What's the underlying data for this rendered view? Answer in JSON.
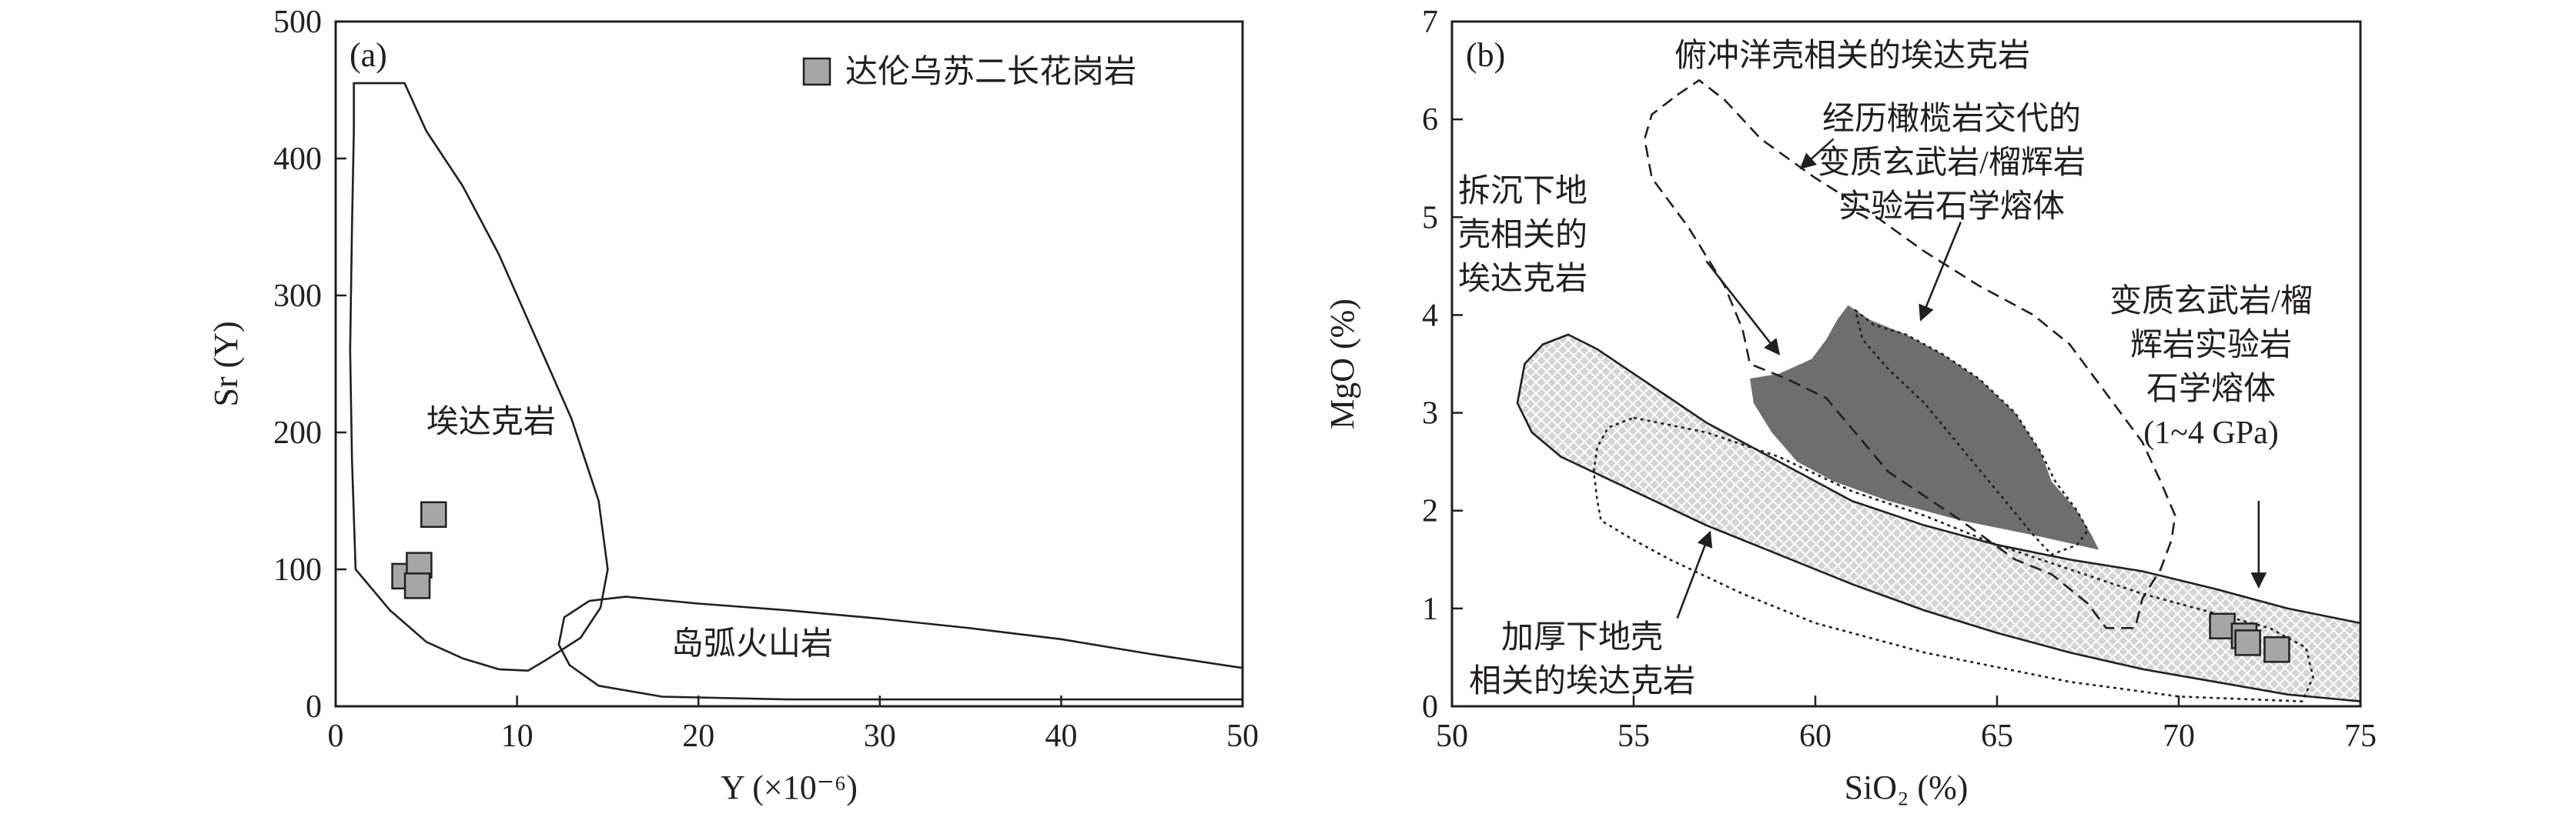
{
  "chart_data": [
    {
      "panel_label": "(a)",
      "type": "scatter",
      "xlabel": "Y (×10⁻⁶)",
      "ylabel": "Sr (Y)",
      "xlim": [
        0,
        50
      ],
      "ylim": [
        0,
        500
      ],
      "xticks": [
        0,
        10,
        20,
        30,
        40,
        50
      ],
      "yticks": [
        0,
        100,
        200,
        300,
        400,
        500
      ],
      "grid": false,
      "legend_position": "top-right",
      "series": [
        {
          "name": "达伦乌苏二长花岗岩",
          "marker": "square",
          "color": "#a6a6a6",
          "x": [
            5.4,
            3.8,
            4.6,
            4.5
          ],
          "y": [
            140,
            95,
            103,
            88
          ]
        }
      ],
      "regions": [
        {
          "label": "埃达克岩",
          "label_at": [
            5.0,
            200
          ],
          "style": "solid",
          "points": [
            [
              1.0,
              455
            ],
            [
              1.0,
              420
            ],
            [
              0.9,
              350
            ],
            [
              0.8,
              260
            ],
            [
              0.9,
              180
            ],
            [
              1.1,
              100
            ],
            [
              3,
              70
            ],
            [
              5,
              47
            ],
            [
              7,
              35
            ],
            [
              9,
              27
            ],
            [
              10.6,
              26
            ],
            [
              11.5,
              33
            ],
            [
              13.5,
              50
            ],
            [
              14.6,
              72
            ],
            [
              15,
              100
            ],
            [
              14.5,
              150
            ],
            [
              13,
              210
            ],
            [
              11,
              270
            ],
            [
              9,
              330
            ],
            [
              7,
              380
            ],
            [
              5,
              420
            ],
            [
              3.8,
              455
            ]
          ]
        },
        {
          "label": "岛弧火山岩",
          "label_at": [
            18.5,
            38
          ],
          "style": "solid",
          "points": [
            [
              50,
              28
            ],
            [
              45,
              38
            ],
            [
              40,
              49
            ],
            [
              35,
              57
            ],
            [
              30,
              64
            ],
            [
              25,
              70
            ],
            [
              20,
              75
            ],
            [
              16,
              80
            ],
            [
              14,
              77
            ],
            [
              12.6,
              65
            ],
            [
              12.3,
              45
            ],
            [
              12.9,
              30
            ],
            [
              14.5,
              15
            ],
            [
              18,
              7
            ],
            [
              25,
              5
            ],
            [
              35,
              5
            ],
            [
              42,
              5
            ],
            [
              50,
              5
            ]
          ]
        }
      ]
    },
    {
      "panel_label": "(b)",
      "type": "scatter",
      "xlabel": "SiO₂ (%)",
      "ylabel": "MgO (%)",
      "xlim": [
        50,
        75
      ],
      "ylim": [
        0,
        7
      ],
      "xticks": [
        50,
        55,
        60,
        65,
        70,
        75
      ],
      "yticks": [
        0,
        1,
        2,
        3,
        4,
        5,
        6,
        7
      ],
      "grid": false,
      "series": [
        {
          "name": "",
          "marker": "square",
          "color": "#a6a6a6",
          "x": [
            71.2,
            71.8,
            71.9,
            72.7
          ],
          "y": [
            0.82,
            0.72,
            0.65,
            0.58
          ]
        }
      ],
      "regions": [
        {
          "label": "变质玄武岩/榴辉岩实验岩石学熔体 (1~4 GPa)",
          "style": "crosshatch",
          "points": [
            [
              75,
              0.85
            ],
            [
              73,
              1.0
            ],
            [
              71,
              1.2
            ],
            [
              69,
              1.38
            ],
            [
              67,
              1.5
            ],
            [
              65,
              1.65
            ],
            [
              63,
              1.85
            ],
            [
              61,
              2.1
            ],
            [
              59,
              2.5
            ],
            [
              57,
              2.9
            ],
            [
              55,
              3.4
            ],
            [
              54,
              3.65
            ],
            [
              53.2,
              3.8
            ],
            [
              52.5,
              3.7
            ],
            [
              52,
              3.5
            ],
            [
              51.8,
              3.1
            ],
            [
              52.2,
              2.8
            ],
            [
              53,
              2.55
            ],
            [
              55,
              2.2
            ],
            [
              57,
              1.85
            ],
            [
              59,
              1.55
            ],
            [
              61,
              1.25
            ],
            [
              63,
              0.98
            ],
            [
              65,
              0.75
            ],
            [
              67,
              0.55
            ],
            [
              69,
              0.38
            ],
            [
              71,
              0.25
            ],
            [
              73,
              0.12
            ],
            [
              75,
              0.05
            ]
          ]
        },
        {
          "label": "拆沉下地壳相关的埃达克岩",
          "style": "filled-dark",
          "points": [
            [
              58.2,
              3.35
            ],
            [
              59,
              3.4
            ],
            [
              59.9,
              3.55
            ],
            [
              60.3,
              3.75
            ],
            [
              60.6,
              3.95
            ],
            [
              60.9,
              4.1
            ],
            [
              61.5,
              3.95
            ],
            [
              62.5,
              3.8
            ],
            [
              63.5,
              3.6
            ],
            [
              64.5,
              3.35
            ],
            [
              65.5,
              3.0
            ],
            [
              66.2,
              2.6
            ],
            [
              66.5,
              2.3
            ],
            [
              67.2,
              2.0
            ],
            [
              67.6,
              1.75
            ],
            [
              67.8,
              1.6
            ],
            [
              66,
              1.75
            ],
            [
              64,
              1.9
            ],
            [
              62,
              2.1
            ],
            [
              60.5,
              2.3
            ],
            [
              59.5,
              2.5
            ],
            [
              58.8,
              2.8
            ],
            [
              58.3,
              3.1
            ]
          ]
        },
        {
          "label": "俯冲洋壳相关的埃达克岩",
          "style": "dashed",
          "points": [
            [
              56.2,
              6.25
            ],
            [
              56.8,
              6.4
            ],
            [
              57.5,
              6.2
            ],
            [
              58.5,
              5.8
            ],
            [
              60,
              5.4
            ],
            [
              61.5,
              5.05
            ],
            [
              63,
              4.65
            ],
            [
              64.5,
              4.3
            ],
            [
              66,
              4.0
            ],
            [
              67,
              3.7
            ],
            [
              68,
              3.2
            ],
            [
              69,
              2.7
            ],
            [
              69.5,
              2.3
            ],
            [
              69.9,
              1.95
            ],
            [
              69.8,
              1.7
            ],
            [
              69.5,
              1.4
            ],
            [
              69,
              1.1
            ],
            [
              68.8,
              0.8
            ],
            [
              68,
              0.8
            ],
            [
              67.5,
              1.05
            ],
            [
              66.5,
              1.35
            ],
            [
              65.5,
              1.5
            ],
            [
              64,
              1.9
            ],
            [
              62,
              2.4
            ],
            [
              60.3,
              3.15
            ],
            [
              59.2,
              3.35
            ],
            [
              58.2,
              3.5
            ],
            [
              58,
              3.85
            ],
            [
              57.5,
              4.3
            ],
            [
              56.5,
              4.9
            ],
            [
              55.5,
              5.4
            ],
            [
              55.3,
              5.8
            ],
            [
              55.5,
              6.05
            ]
          ]
        },
        {
          "label": "经历橄榄岩交代的变质玄武岩/榴辉岩实验岩石学熔体",
          "style": "dotted",
          "points": [
            [
              61.1,
              4.05
            ],
            [
              61.6,
              3.9
            ],
            [
              62.5,
              3.8
            ],
            [
              63.5,
              3.6
            ],
            [
              64.5,
              3.35
            ],
            [
              65.5,
              3.0
            ],
            [
              66.2,
              2.6
            ],
            [
              66.6,
              2.3
            ],
            [
              67.2,
              2.0
            ],
            [
              67.5,
              1.8
            ],
            [
              67.2,
              1.65
            ],
            [
              66.5,
              1.55
            ],
            [
              66,
              1.75
            ],
            [
              65,
              2.2
            ],
            [
              64,
              2.65
            ],
            [
              63,
              3.1
            ],
            [
              62,
              3.45
            ],
            [
              61.3,
              3.75
            ]
          ]
        },
        {
          "label": "加厚下地壳相关的埃达克岩",
          "style": "dotted",
          "points": [
            [
              55,
              2.95
            ],
            [
              57,
              2.8
            ],
            [
              59,
              2.55
            ],
            [
              61,
              2.2
            ],
            [
              63,
              1.95
            ],
            [
              65,
              1.65
            ],
            [
              67,
              1.4
            ],
            [
              69,
              1.15
            ],
            [
              71,
              0.95
            ],
            [
              72.5,
              0.8
            ],
            [
              73.5,
              0.6
            ],
            [
              73.7,
              0.3
            ],
            [
              73.4,
              0.05
            ],
            [
              70,
              0.1
            ],
            [
              67,
              0.25
            ],
            [
              63,
              0.55
            ],
            [
              60,
              0.85
            ],
            [
              58,
              1.15
            ],
            [
              56,
              1.5
            ],
            [
              55,
              1.7
            ],
            [
              54.1,
              1.9
            ],
            [
              54,
              2.1
            ],
            [
              53.9,
              2.4
            ],
            [
              54,
              2.65
            ],
            [
              54.3,
              2.85
            ]
          ]
        }
      ],
      "annotations": [
        {
          "lines": [
            "俯冲洋壳相关的埃达克岩"
          ],
          "arrow_from": [
            60.5,
            5.8
          ],
          "arrow_to": [
            59.6,
            5.5
          ]
        },
        {
          "lines": [
            "经历橄榄岩交代的",
            "变质玄武岩/榴辉岩",
            "实验岩石学熔体"
          ],
          "arrow_from": [
            64.0,
            4.95
          ],
          "arrow_to": [
            62.9,
            3.95
          ]
        },
        {
          "lines": [
            "拆沉下地",
            "壳相关的",
            "埃达克岩"
          ],
          "arrow_from": [
            57.0,
            4.55
          ],
          "arrow_to": [
            59.0,
            3.6
          ]
        },
        {
          "lines": [
            "变质玄武岩/榴",
            "辉岩实验岩",
            "石学熔体",
            "(1~4 GPa)"
          ],
          "arrow_from": [
            72.2,
            2.1
          ],
          "arrow_to": [
            72.2,
            1.22
          ]
        },
        {
          "lines": [
            "加厚下地壳",
            "相关的埃达克岩"
          ],
          "arrow_from": [
            56.2,
            0.9
          ],
          "arrow_to": [
            57.1,
            1.78
          ]
        }
      ]
    }
  ]
}
